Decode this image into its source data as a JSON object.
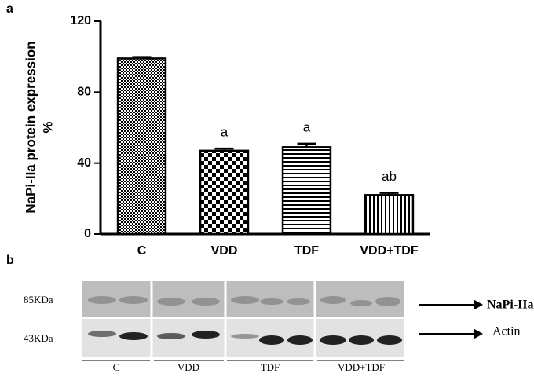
{
  "panel_labels": [
    "a",
    "b"
  ],
  "chart_data": {
    "type": "bar",
    "ylabel": [
      "NaPi-IIa protein expression",
      "%"
    ],
    "categories": [
      "C",
      "VDD",
      "TDF",
      "VDD+TDF"
    ],
    "values": [
      99,
      47,
      49,
      22
    ],
    "errors": [
      0.8,
      1.2,
      2,
      1.2
    ],
    "annotations": [
      null,
      "a",
      "a",
      "ab"
    ],
    "color": "#000000",
    "ylim": [
      0,
      120
    ],
    "yticks": [
      0,
      40,
      80,
      120
    ]
  },
  "blot": {
    "markers": [
      "85KDa",
      "43KDa"
    ],
    "proteins": [
      "NaPi-IIa",
      "Actin"
    ],
    "groups": [
      "C",
      "VDD",
      "TDF",
      "VDD+TDF"
    ]
  }
}
